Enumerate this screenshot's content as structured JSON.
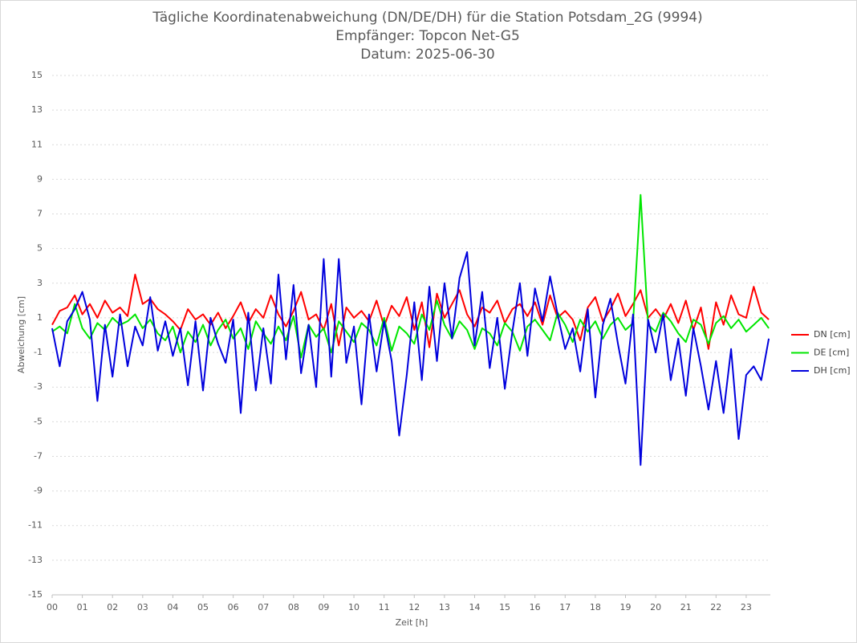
{
  "chart_data": {
    "type": "line",
    "title": "Tägliche Koordinatenabweichung (DN/DE/DH) für die Station Potsdam_2G (9994)",
    "subtitle": [
      "Empfänger: Topcon Net-G5",
      "Datum: 2025-06-30"
    ],
    "xlabel": "Zeit [h]",
    "ylabel": "Abweichung [cm]",
    "x": [
      0,
      0.25,
      0.5,
      0.75,
      1,
      1.25,
      1.5,
      1.75,
      2,
      2.25,
      2.5,
      2.75,
      3,
      3.25,
      3.5,
      3.75,
      4,
      4.25,
      4.5,
      4.75,
      5,
      5.25,
      5.5,
      5.75,
      6,
      6.25,
      6.5,
      6.75,
      7,
      7.25,
      7.5,
      7.75,
      8,
      8.25,
      8.5,
      8.75,
      9,
      9.25,
      9.5,
      9.75,
      10,
      10.25,
      10.5,
      10.75,
      11,
      11.25,
      11.5,
      11.75,
      12,
      12.25,
      12.5,
      12.75,
      13,
      13.25,
      13.5,
      13.75,
      14,
      14.25,
      14.5,
      14.75,
      15,
      15.25,
      15.5,
      15.75,
      16,
      16.25,
      16.5,
      16.75,
      17,
      17.25,
      17.5,
      17.75,
      18,
      18.25,
      18.5,
      18.75,
      19,
      19.25,
      19.5,
      19.75,
      20,
      20.25,
      20.5,
      20.75,
      21,
      21.25,
      21.5,
      21.75,
      22,
      22.25,
      22.5,
      22.75,
      23,
      23.25,
      23.5,
      23.75
    ],
    "series": [
      {
        "name": "DN [cm]",
        "color": "#ff0000",
        "values": [
          0.6,
          1.4,
          1.6,
          2.3,
          1.2,
          1.8,
          1.0,
          2.0,
          1.3,
          1.6,
          1.1,
          3.5,
          1.8,
          2.1,
          1.5,
          1.2,
          0.8,
          0.3,
          1.5,
          0.9,
          1.2,
          0.6,
          1.3,
          0.4,
          1.1,
          1.9,
          0.7,
          1.5,
          1.0,
          2.3,
          1.2,
          0.5,
          1.4,
          2.5,
          0.9,
          1.2,
          0.3,
          1.8,
          -0.6,
          1.6,
          1.0,
          1.4,
          0.8,
          2.0,
          0.5,
          1.7,
          1.1,
          2.2,
          0.3,
          1.9,
          -0.7,
          2.4,
          1.0,
          1.8,
          2.6,
          1.2,
          0.5,
          1.6,
          1.3,
          2.0,
          0.7,
          1.5,
          1.8,
          1.1,
          1.9,
          0.6,
          2.3,
          1.0,
          1.4,
          0.9,
          -0.3,
          1.6,
          2.2,
          0.8,
          1.5,
          2.4,
          1.1,
          1.8,
          2.6,
          1.0,
          1.5,
          0.9,
          1.8,
          0.7,
          2.0,
          0.3,
          1.6,
          -0.8,
          1.9,
          0.6,
          2.3,
          1.2,
          1.0,
          2.8,
          1.3,
          0.9
        ]
      },
      {
        "name": "DE [cm]",
        "color": "#00e600",
        "values": [
          0.2,
          0.5,
          0.1,
          1.8,
          0.4,
          -0.2,
          0.7,
          0.3,
          1.0,
          0.6,
          0.8,
          1.2,
          0.4,
          0.9,
          0.1,
          -0.3,
          0.5,
          -1.0,
          0.2,
          -0.4,
          0.6,
          -0.6,
          0.3,
          0.9,
          -0.2,
          0.4,
          -0.8,
          0.8,
          0.1,
          -0.5,
          0.5,
          -0.3,
          1.1,
          -1.3,
          0.6,
          -0.1,
          0.4,
          -1.0,
          0.8,
          0.2,
          -0.4,
          0.7,
          0.3,
          -0.6,
          1.0,
          -0.9,
          0.5,
          0.1,
          -0.5,
          1.2,
          0.3,
          2.0,
          0.6,
          -0.2,
          0.8,
          0.3,
          -0.8,
          0.4,
          0.1,
          -0.6,
          0.7,
          0.2,
          -0.9,
          0.5,
          0.9,
          0.3,
          -0.3,
          1.3,
          0.6,
          -0.4,
          0.9,
          0.2,
          0.8,
          -0.2,
          0.6,
          1.0,
          0.3,
          0.7,
          8.1,
          0.6,
          0.2,
          1.3,
          0.8,
          0.1,
          -0.4,
          0.9,
          0.6,
          -0.5,
          0.7,
          1.1,
          0.4,
          0.9,
          0.2,
          0.6,
          1.0,
          0.4
        ]
      },
      {
        "name": "DH [cm]",
        "color": "#0000dd",
        "values": [
          0.4,
          -1.8,
          0.8,
          1.5,
          2.5,
          0.9,
          -3.8,
          0.6,
          -2.4,
          1.2,
          -1.8,
          0.5,
          -0.6,
          2.2,
          -0.9,
          0.8,
          -1.2,
          0.4,
          -2.9,
          0.8,
          -3.2,
          1.0,
          -0.5,
          -1.6,
          0.9,
          -4.5,
          1.3,
          -3.2,
          0.4,
          -2.8,
          3.5,
          -1.4,
          2.9,
          -2.2,
          0.6,
          -3.0,
          4.4,
          -2.4,
          4.4,
          -1.6,
          0.5,
          -4.0,
          1.2,
          -2.1,
          0.8,
          -1.5,
          -5.8,
          -2.3,
          1.9,
          -2.6,
          2.8,
          -1.5,
          3.0,
          -0.2,
          3.3,
          4.8,
          -0.6,
          2.5,
          -1.9,
          1.0,
          -3.1,
          0.2,
          3.0,
          -1.2,
          2.7,
          0.8,
          3.4,
          1.2,
          -0.8,
          0.4,
          -2.1,
          1.5,
          -3.6,
          0.6,
          2.1,
          -0.5,
          -2.8,
          1.2,
          -7.5,
          0.9,
          -1.0,
          1.2,
          -2.6,
          -0.2,
          -3.5,
          0.4,
          -1.8,
          -4.3,
          -1.5,
          -4.5,
          -0.8,
          -6.0,
          -2.3,
          -1.8,
          -2.6,
          -0.2
        ]
      }
    ],
    "xlim": [
      0,
      23.8
    ],
    "xticks": [
      {
        "value": 0,
        "label": "00"
      },
      {
        "value": 1,
        "label": "01"
      },
      {
        "value": 2,
        "label": "02"
      },
      {
        "value": 3,
        "label": "03"
      },
      {
        "value": 4,
        "label": "04"
      },
      {
        "value": 5,
        "label": "05"
      },
      {
        "value": 6,
        "label": "06"
      },
      {
        "value": 7,
        "label": "07"
      },
      {
        "value": 8,
        "label": "08"
      },
      {
        "value": 9,
        "label": "09"
      },
      10,
      11,
      12,
      13,
      14,
      15,
      16,
      17,
      18,
      19,
      20,
      21,
      22,
      23
    ],
    "ylim": [
      -15,
      15
    ],
    "yticks": [
      -15,
      -13,
      -11,
      -9,
      -7,
      -5,
      -3,
      -1,
      1,
      3,
      5,
      7,
      9,
      11,
      13,
      15
    ],
    "grid": true,
    "legend": "right"
  }
}
